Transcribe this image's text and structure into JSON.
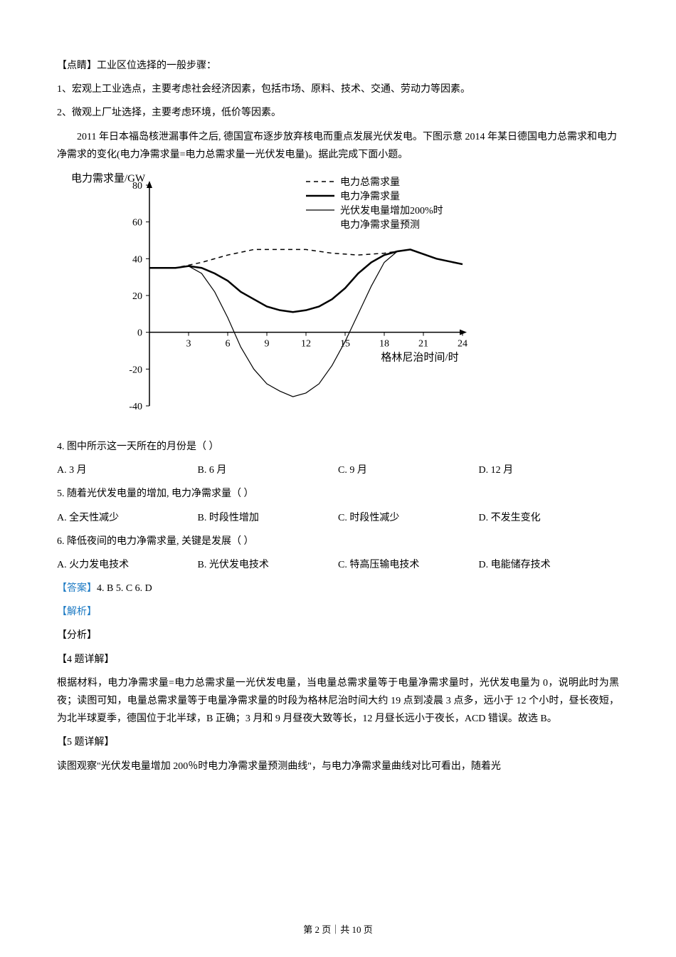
{
  "text": {
    "tip_label": "【点睛】",
    "tip_content": "工业区位选择的一般步骤：",
    "tip_line1": "1、宏观上工业选点，主要考虑社会经济因素，包括市场、原料、技术、交通、劳动力等因素。",
    "tip_line2": "2、微观上厂址选择，主要考虑环境，低价等因素。",
    "passage": "2011 年日本福岛核泄漏事件之后, 德国宣布逐步放弃核电而重点发展光伏发电。下图示意 2014 年某日德国电力总需求和电力净需求的变化(电力净需求量=电力总需求量一光伏发电量)。据此完成下面小题。",
    "q4": "4.  图中所示这一天所在的月份是（     ）",
    "q4a": "A.  3 月",
    "q4b": "B.  6 月",
    "q4c": "C.  9 月",
    "q4d": "D.  12 月",
    "q5": "5.  随着光伏发电量的增加, 电力净需求量（     ）",
    "q5a": "A.  全天性减少",
    "q5b": "B.  时段性增加",
    "q5c": "C.  时段性减少",
    "q5d": "D.  不发生变化",
    "q6": "6.  降低夜间的电力净需求量, 关键是发展（     ）",
    "q6a": "A.  火力发电技术",
    "q6b": "B.  光伏发电技术",
    "q6c": "C.  特高压输电技术",
    "q6d": "D.  电能储存技术",
    "answer_label": "【答案】",
    "answer_content": "4. B   5. C   6. D",
    "analysis_label": "【解析】",
    "fenxi": "【分析】",
    "q4_detail_label": "【4 题详解】",
    "q4_detail": "根据材料，电力净需求量=电力总需求量一光伏发电量，当电量总需求量等于电量净需求量时，光伏发电量为 0，说明此时为黑夜；读图可知，电量总需求量等于电量净需求量的时段为格林尼治时间大约 19 点到凌晨 3 点多，远小于 12 个小时，昼长夜短，为北半球夏季，德国位于北半球，B 正确；3 月和 9 月昼夜大致等长，12 月昼长远小于夜长，ACD 错误。故选 B。",
    "q5_detail_label": "【5 题详解】",
    "q5_detail": "读图观察\"光伏发电量增加 200％时电力净需求量预测曲线\"，与电力净需求量曲线对比可看出，随着光",
    "footer": "第 2 页｜共 10 页"
  },
  "chart": {
    "y_axis_title": "电力需求量/GW",
    "x_axis_title": "格林尼治时间/时",
    "legend": {
      "total": "电力总需求量",
      "net": "电力净需求量",
      "forecast1": "光伏发电量增加200%时",
      "forecast2": "电力净需求量预测"
    },
    "y_ticks": [
      -40,
      -20,
      0,
      20,
      40,
      60,
      80
    ],
    "x_ticks": [
      3,
      6,
      9,
      12,
      15,
      18,
      21,
      24
    ],
    "y_range": [
      -40,
      80
    ],
    "x_range": [
      0,
      24
    ],
    "colors": {
      "axis": "#000000",
      "total_line": "#000000",
      "net_line": "#000000",
      "forecast_line": "#000000",
      "background": "#ffffff"
    },
    "line_widths": {
      "total": 1.5,
      "net": 2.5,
      "forecast": 1.2
    },
    "font_sizes": {
      "axis_title": 15,
      "tick_label": 14,
      "legend": 14
    },
    "series": {
      "total": [
        {
          "x": 0,
          "y": 35
        },
        {
          "x": 2,
          "y": 35
        },
        {
          "x": 4,
          "y": 38
        },
        {
          "x": 6,
          "y": 42
        },
        {
          "x": 8,
          "y": 45
        },
        {
          "x": 10,
          "y": 45
        },
        {
          "x": 12,
          "y": 45
        },
        {
          "x": 14,
          "y": 43
        },
        {
          "x": 16,
          "y": 42
        },
        {
          "x": 18,
          "y": 43
        },
        {
          "x": 20,
          "y": 45
        },
        {
          "x": 22,
          "y": 40
        },
        {
          "x": 24,
          "y": 37
        }
      ],
      "net": [
        {
          "x": 0,
          "y": 35
        },
        {
          "x": 2,
          "y": 35
        },
        {
          "x": 3,
          "y": 36
        },
        {
          "x": 4,
          "y": 35
        },
        {
          "x": 5,
          "y": 32
        },
        {
          "x": 6,
          "y": 28
        },
        {
          "x": 7,
          "y": 22
        },
        {
          "x": 8,
          "y": 18
        },
        {
          "x": 9,
          "y": 14
        },
        {
          "x": 10,
          "y": 12
        },
        {
          "x": 11,
          "y": 11
        },
        {
          "x": 12,
          "y": 12
        },
        {
          "x": 13,
          "y": 14
        },
        {
          "x": 14,
          "y": 18
        },
        {
          "x": 15,
          "y": 24
        },
        {
          "x": 16,
          "y": 32
        },
        {
          "x": 17,
          "y": 38
        },
        {
          "x": 18,
          "y": 42
        },
        {
          "x": 19,
          "y": 44
        },
        {
          "x": 20,
          "y": 45
        },
        {
          "x": 22,
          "y": 40
        },
        {
          "x": 24,
          "y": 37
        }
      ],
      "forecast": [
        {
          "x": 0,
          "y": 35
        },
        {
          "x": 2,
          "y": 35
        },
        {
          "x": 3,
          "y": 36
        },
        {
          "x": 4,
          "y": 32
        },
        {
          "x": 5,
          "y": 22
        },
        {
          "x": 6,
          "y": 8
        },
        {
          "x": 7,
          "y": -8
        },
        {
          "x": 8,
          "y": -20
        },
        {
          "x": 9,
          "y": -28
        },
        {
          "x": 10,
          "y": -32
        },
        {
          "x": 11,
          "y": -35
        },
        {
          "x": 12,
          "y": -33
        },
        {
          "x": 13,
          "y": -28
        },
        {
          "x": 14,
          "y": -18
        },
        {
          "x": 15,
          "y": -5
        },
        {
          "x": 16,
          "y": 10
        },
        {
          "x": 17,
          "y": 25
        },
        {
          "x": 18,
          "y": 38
        },
        {
          "x": 19,
          "y": 44
        },
        {
          "x": 20,
          "y": 45
        },
        {
          "x": 22,
          "y": 40
        },
        {
          "x": 24,
          "y": 37
        }
      ]
    }
  }
}
